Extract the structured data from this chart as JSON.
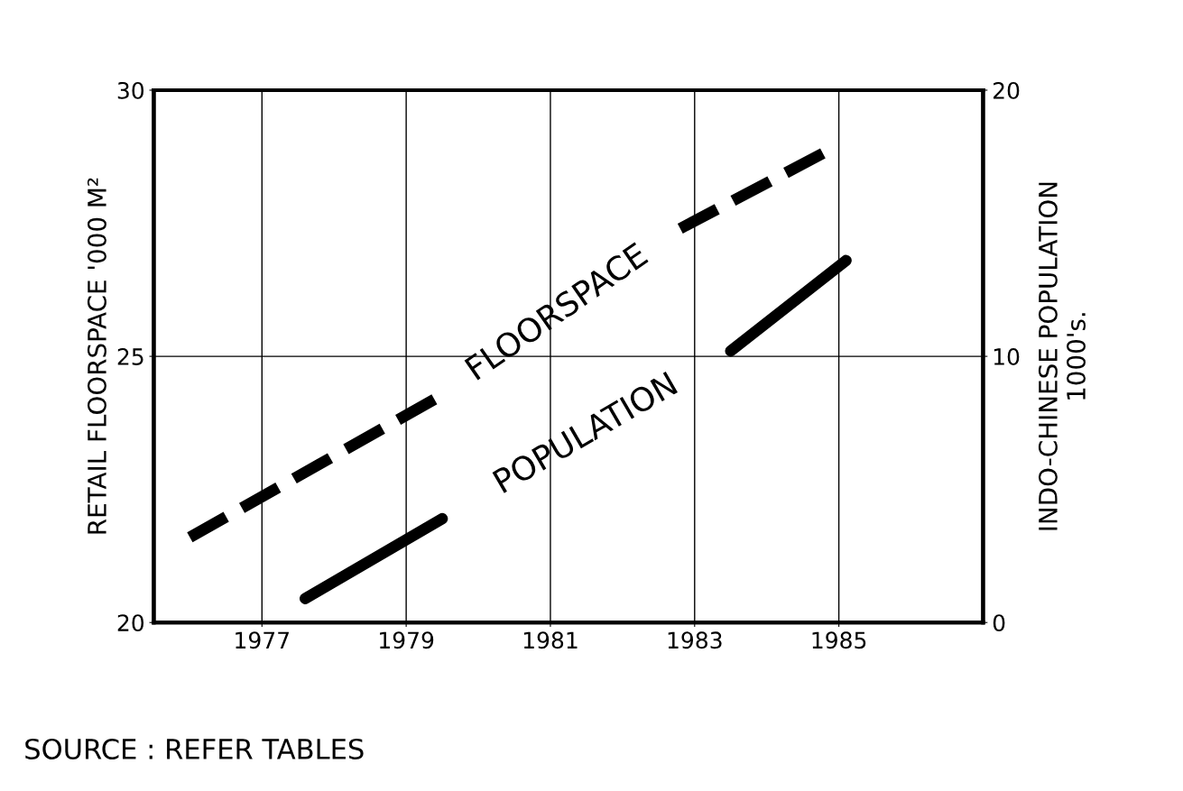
{
  "chart_data": {
    "type": "line",
    "ylabel": "RETAIL FLOORSPACE '000 M²",
    "y2label": "INDO-CHINESE POPULATION\n1000's.",
    "xlim": [
      1975.5,
      1987
    ],
    "xticks": [
      1977,
      1979,
      1981,
      1983,
      1985
    ],
    "ylim": [
      20,
      30
    ],
    "yticks": [
      20,
      25,
      30
    ],
    "y2lim": [
      0,
      20
    ],
    "y2ticks": [
      0,
      10,
      20
    ],
    "grid": true,
    "legend": false,
    "annotations": [
      "SOURCE : REFER TABLES"
    ],
    "series": [
      {
        "name": "FLOORSPACE",
        "color": "#000000",
        "line_style": "dashed",
        "x": [
          1976.0,
          1979.4,
          1981.1,
          1982.8,
          1984.9
        ],
        "values": [
          21.6,
          24.2,
          null,
          27.4,
          28.9
        ]
      },
      {
        "name": "POPULATION",
        "color": "#000000",
        "line_style": "solid",
        "axis": "y2",
        "x": [
          1977.6,
          1979.5,
          1981.5,
          1983.5,
          1985.1
        ],
        "values": [
          0.9,
          3.9,
          null,
          10.2,
          13.6
        ]
      }
    ]
  }
}
